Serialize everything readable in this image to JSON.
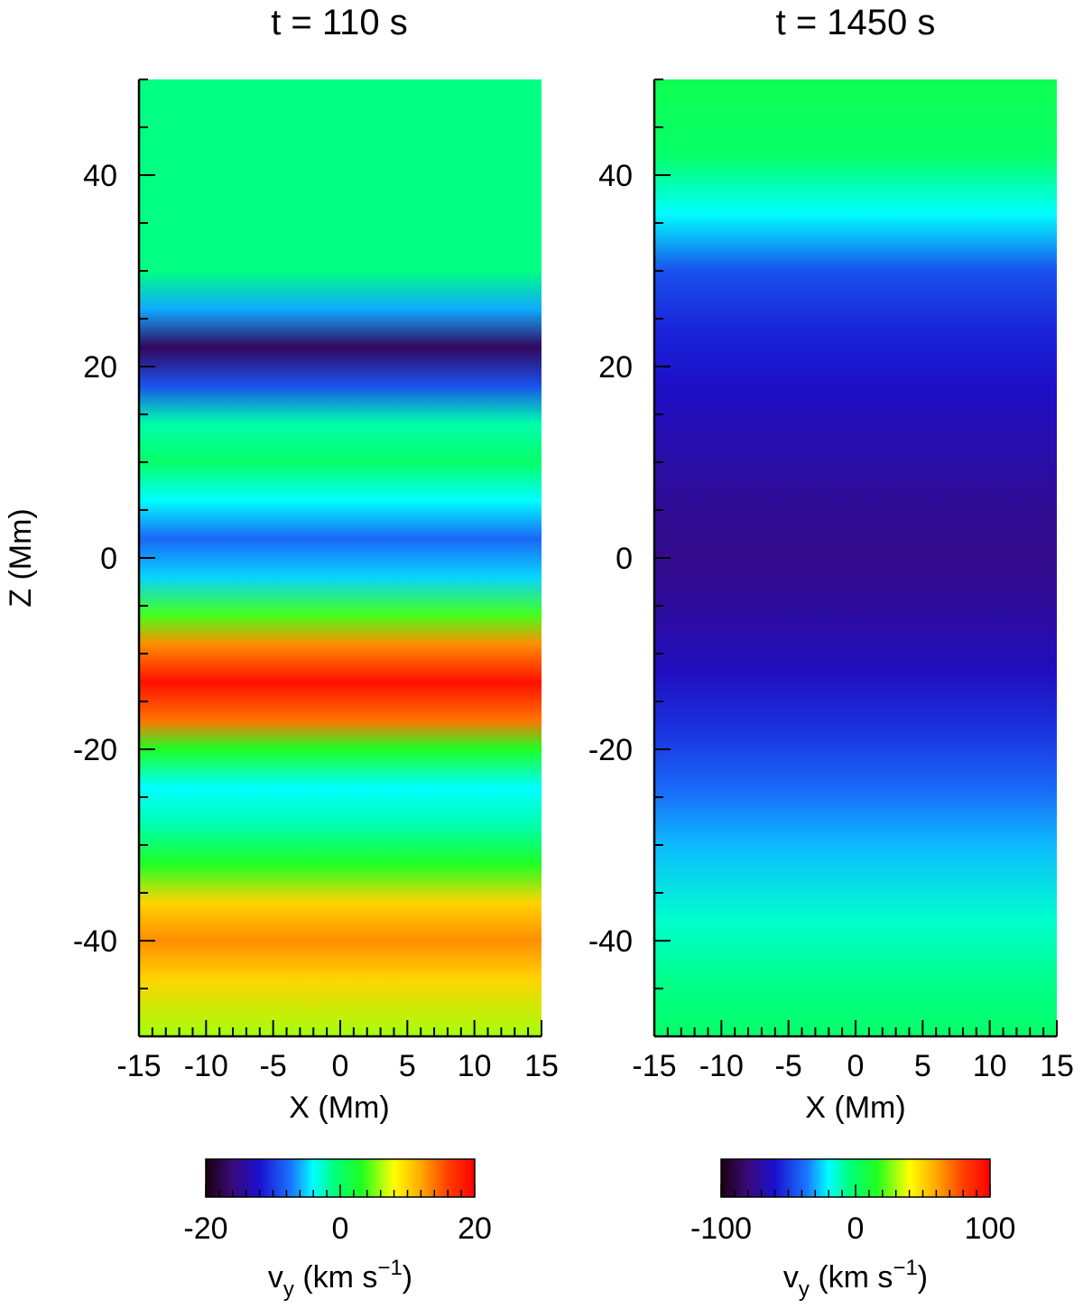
{
  "chart_data": [
    {
      "type": "heatmap",
      "title": "t = 110 s",
      "xlabel": "X (Mm)",
      "ylabel": "Z (Mm)",
      "xlim": [
        -15,
        15
      ],
      "ylim": [
        -50,
        50
      ],
      "xticks": [
        -15,
        -10,
        -5,
        0,
        5,
        10,
        15
      ],
      "yticks": [
        -40,
        -20,
        0,
        20,
        40
      ],
      "z_profile": [
        {
          "z": 50,
          "v": -1
        },
        {
          "z": 30,
          "v": -1
        },
        {
          "z": 26,
          "v": -6
        },
        {
          "z": 22,
          "v": -17
        },
        {
          "z": 18,
          "v": -9
        },
        {
          "z": 14,
          "v": -2
        },
        {
          "z": 10,
          "v": 0
        },
        {
          "z": 6,
          "v": -4
        },
        {
          "z": 2,
          "v": -8
        },
        {
          "z": -2,
          "v": -5
        },
        {
          "z": -6,
          "v": 4
        },
        {
          "z": -9,
          "v": 13
        },
        {
          "z": -13,
          "v": 19
        },
        {
          "z": -17,
          "v": 14
        },
        {
          "z": -20,
          "v": 3
        },
        {
          "z": -24,
          "v": -4
        },
        {
          "z": -28,
          "v": -2
        },
        {
          "z": -32,
          "v": 3
        },
        {
          "z": -36,
          "v": 10
        },
        {
          "z": -40,
          "v": 13
        },
        {
          "z": -44,
          "v": 10
        },
        {
          "z": -50,
          "v": 6
        }
      ],
      "colorbar": {
        "min": -20,
        "max": 20,
        "ticks": [
          -20,
          0,
          20
        ],
        "label_main": "v",
        "label_sub": "y",
        "label_unit": " (km s",
        "label_exp": "−1",
        "label_close": ")"
      }
    },
    {
      "type": "heatmap",
      "title": "t = 1450 s",
      "xlabel": "X (Mm)",
      "ylabel": "",
      "xlim": [
        -15,
        15
      ],
      "ylim": [
        -50,
        50
      ],
      "xticks": [
        -15,
        -10,
        -5,
        0,
        5,
        10,
        15
      ],
      "yticks": [
        -40,
        -20,
        0,
        20,
        40
      ],
      "z_profile": [
        {
          "z": 50,
          "v": 5
        },
        {
          "z": 42,
          "v": 0
        },
        {
          "z": 36,
          "v": -20
        },
        {
          "z": 30,
          "v": -45
        },
        {
          "z": 24,
          "v": -55
        },
        {
          "z": 18,
          "v": -62
        },
        {
          "z": 12,
          "v": -68
        },
        {
          "z": 5,
          "v": -74
        },
        {
          "z": 0,
          "v": -76
        },
        {
          "z": -5,
          "v": -72
        },
        {
          "z": -12,
          "v": -64
        },
        {
          "z": -18,
          "v": -52
        },
        {
          "z": -24,
          "v": -40
        },
        {
          "z": -30,
          "v": -28
        },
        {
          "z": -38,
          "v": -14
        },
        {
          "z": -45,
          "v": -5
        },
        {
          "z": -50,
          "v": 0
        }
      ],
      "colorbar": {
        "min": -100,
        "max": 100,
        "ticks": [
          -100,
          0,
          100
        ],
        "label_main": "v",
        "label_sub": "y",
        "label_unit": " (km s",
        "label_exp": "−1",
        "label_close": ")"
      }
    }
  ],
  "colormap": {
    "stops": [
      {
        "t": 0.0,
        "color": "#1a0010"
      },
      {
        "t": 0.1,
        "color": "#3a0a7a"
      },
      {
        "t": 0.2,
        "color": "#1a10d0"
      },
      {
        "t": 0.32,
        "color": "#1a78ff"
      },
      {
        "t": 0.4,
        "color": "#00ffff"
      },
      {
        "t": 0.48,
        "color": "#00ff7a"
      },
      {
        "t": 0.58,
        "color": "#20ff20"
      },
      {
        "t": 0.7,
        "color": "#ffff00"
      },
      {
        "t": 0.8,
        "color": "#ffa800"
      },
      {
        "t": 0.9,
        "color": "#ff4000"
      },
      {
        "t": 1.0,
        "color": "#ff0000"
      }
    ]
  }
}
